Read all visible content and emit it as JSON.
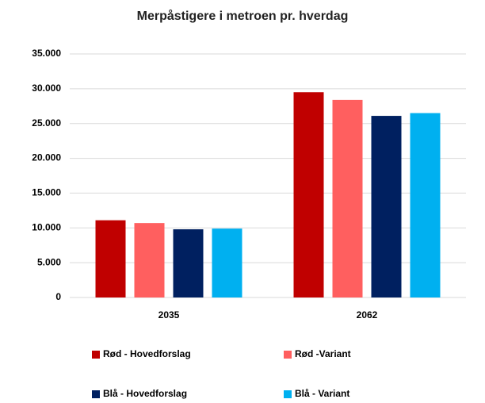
{
  "chart_data": {
    "type": "bar",
    "title": "Merpåstigere i metroen pr. hverdag",
    "categories": [
      "2035",
      "2062"
    ],
    "series": [
      {
        "name": "Rød - Hovedforslag",
        "color": "#c00000",
        "values": [
          11100,
          29500
        ]
      },
      {
        "name": "Rød -Variant",
        "color": "#ff5f5f",
        "values": [
          10700,
          28400
        ]
      },
      {
        "name": "Blå - Hovedforslag",
        "color": "#002060",
        "values": [
          9800,
          26100
        ]
      },
      {
        "name": "Blå - Variant",
        "color": "#00b0f0",
        "values": [
          9900,
          26500
        ]
      }
    ],
    "ylim": [
      0,
      35000
    ],
    "yticks": [
      0,
      {
        "value": 5000,
        "label": "5.000"
      },
      {
        "value": 10000,
        "label": "10.000"
      },
      {
        "value": 15000,
        "label": "15.000"
      },
      {
        "value": 20000,
        "label": "20.000"
      },
      {
        "value": 25000,
        "label": "25.000"
      },
      {
        "value": 30000,
        "label": "30.000"
      },
      {
        "value": 35000,
        "label": "35.000"
      }
    ],
    "grid": true,
    "legend": "bottom"
  }
}
